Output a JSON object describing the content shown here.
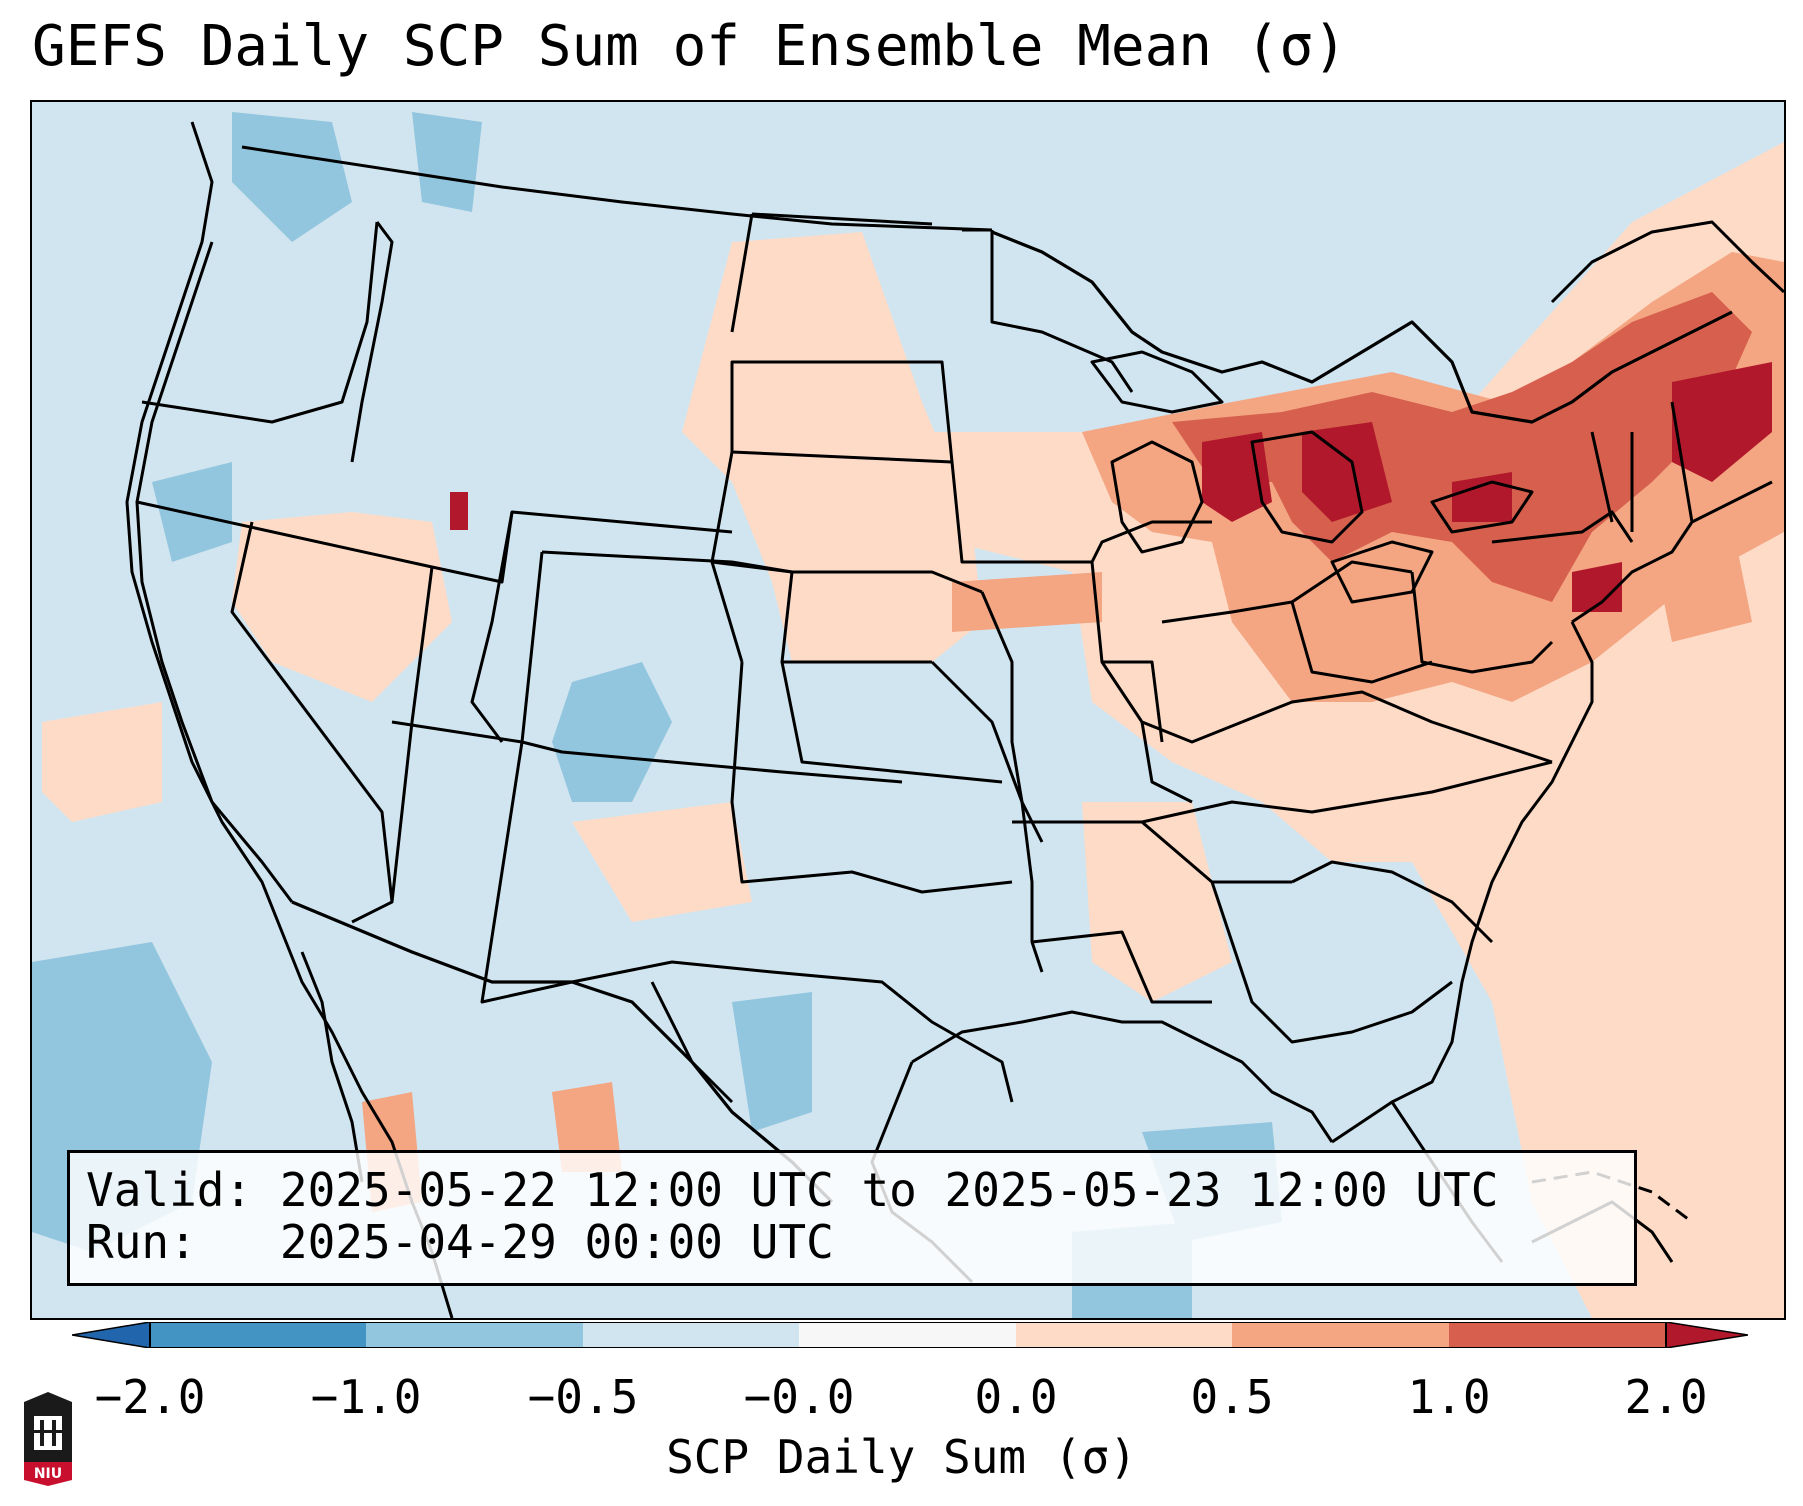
{
  "title": "GEFS Daily SCP Sum of Ensemble Mean (σ)",
  "info": {
    "valid_label": "Valid:",
    "valid_value": "2025-05-22 12:00 UTC to 2025-05-23 12:00 UTC",
    "run_label": "Run:",
    "run_value": "2025-04-29 00:00 UTC"
  },
  "colorbar": {
    "label": "SCP Daily Sum (σ)",
    "ticks": [
      "−2.0",
      "−1.0",
      "−0.5",
      "−0.0",
      "0.0",
      "0.5",
      "1.0",
      "2.0"
    ],
    "colors": [
      "#4393c3",
      "#92c5de",
      "#d1e5f0",
      "#f7f7f7",
      "#fddbc7",
      "#f4a582",
      "#d6604d",
      "#b2182b"
    ],
    "extend": "both"
  },
  "logo": {
    "text": "NIU",
    "color": "#c8102e"
  },
  "map": {
    "background_color": "#d1e5f0",
    "features": [
      "state-boundaries",
      "country-boundaries",
      "coastlines"
    ],
    "anomaly_regions": [
      {
        "name": "great-lakes-northeast",
        "category": "1.0 to 2.0"
      },
      {
        "name": "ohio-valley-mid-atlantic",
        "category": "0.5 to 1.0"
      },
      {
        "name": "western-atlantic",
        "category": "0.0 to 0.5"
      },
      {
        "name": "southwest-colorado",
        "category": "-1.0 to -0.5"
      }
    ]
  }
}
